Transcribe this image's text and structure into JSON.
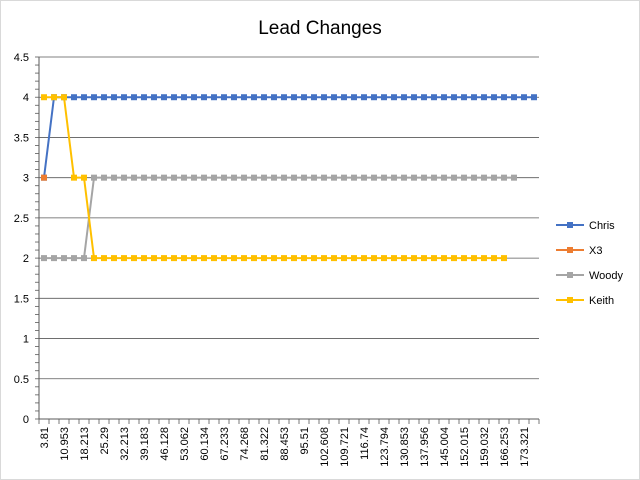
{
  "chart_data": {
    "type": "line",
    "title": "Lead Changes",
    "xlabel": "",
    "ylabel": "",
    "ylim": [
      0,
      4.5
    ],
    "y_ticks": [
      "0",
      "0.5",
      "1",
      "1.5",
      "2",
      "2.5",
      "3",
      "3.5",
      "4",
      "4.5"
    ],
    "x_tick_labels": [
      "3.81",
      "10.953",
      "18.213",
      "25.29",
      "32.213",
      "39.183",
      "46.128",
      "53.062",
      "60.134",
      "67.233",
      "74.268",
      "81.322",
      "88.453",
      "95.51",
      "102.608",
      "109.721",
      "116.74",
      "123.794",
      "130.853",
      "137.956",
      "145.004",
      "152.015",
      "159.032",
      "166.253",
      "173.321"
    ],
    "category_count": 50,
    "grid": true,
    "legend_position": "right",
    "series": [
      {
        "name": "Chris",
        "color": "#4472C4",
        "start": 0,
        "values": [
          3,
          4,
          4,
          4,
          4,
          4,
          4,
          4,
          4,
          4,
          4,
          4,
          4,
          4,
          4,
          4,
          4,
          4,
          4,
          4,
          4,
          4,
          4,
          4,
          4,
          4,
          4,
          4,
          4,
          4,
          4,
          4,
          4,
          4,
          4,
          4,
          4,
          4,
          4,
          4,
          4,
          4,
          4,
          4,
          4,
          4,
          4,
          4,
          4,
          4
        ]
      },
      {
        "name": "X3",
        "color": "#ED7D31",
        "start": 0,
        "values": [
          3
        ]
      },
      {
        "name": "Woody",
        "color": "#A5A5A5",
        "start": 0,
        "values": [
          2,
          2,
          2,
          2,
          2,
          3,
          3,
          3,
          3,
          3,
          3,
          3,
          3,
          3,
          3,
          3,
          3,
          3,
          3,
          3,
          3,
          3,
          3,
          3,
          3,
          3,
          3,
          3,
          3,
          3,
          3,
          3,
          3,
          3,
          3,
          3,
          3,
          3,
          3,
          3,
          3,
          3,
          3,
          3,
          3,
          3,
          3,
          3
        ]
      },
      {
        "name": "Keith",
        "color": "#FFC000",
        "start": 0,
        "values": [
          4,
          4,
          4,
          3,
          3,
          2,
          2,
          2,
          2,
          2,
          2,
          2,
          2,
          2,
          2,
          2,
          2,
          2,
          2,
          2,
          2,
          2,
          2,
          2,
          2,
          2,
          2,
          2,
          2,
          2,
          2,
          2,
          2,
          2,
          2,
          2,
          2,
          2,
          2,
          2,
          2,
          2,
          2,
          2,
          2,
          2,
          2
        ]
      }
    ]
  }
}
